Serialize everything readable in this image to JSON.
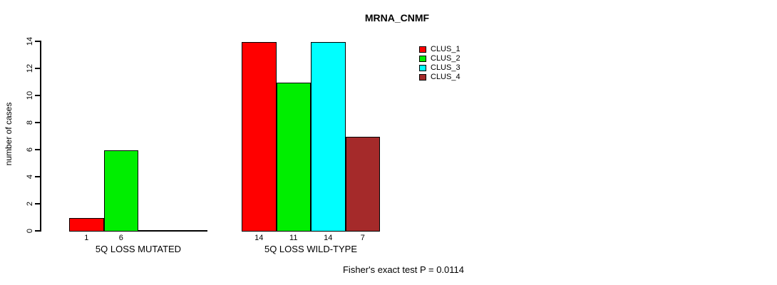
{
  "chart_data": {
    "type": "bar",
    "title": "MRNA_CNMF",
    "xlabel": "",
    "ylabel": "number of cases",
    "ylim": [
      0,
      14
    ],
    "yticks": [
      0,
      2,
      4,
      6,
      8,
      10,
      12,
      14
    ],
    "grid": false,
    "legend_position": "top-right",
    "categories": [
      "5Q LOSS MUTATED",
      "5Q LOSS WILD-TYPE"
    ],
    "series": [
      {
        "name": "CLUS_1",
        "color": "#ff0000",
        "values": [
          1,
          14
        ]
      },
      {
        "name": "CLUS_2",
        "color": "#00ee00",
        "values": [
          6,
          11
        ]
      },
      {
        "name": "CLUS_3",
        "color": "#00ffff",
        "values": [
          0,
          14
        ]
      },
      {
        "name": "CLUS_4",
        "color": "#a52a2a",
        "values": [
          0,
          7
        ]
      }
    ],
    "bar_value_labels": {
      "5Q LOSS MUTATED": [
        "1",
        "6",
        "",
        ""
      ],
      "5Q LOSS WILD-TYPE": [
        "14",
        "11",
        "14",
        "7"
      ]
    },
    "annotation": "Fisher's exact test P = 0.0114",
    "colors": {
      "axis": "#000000",
      "text": "#000000",
      "background": "#ffffff"
    }
  }
}
